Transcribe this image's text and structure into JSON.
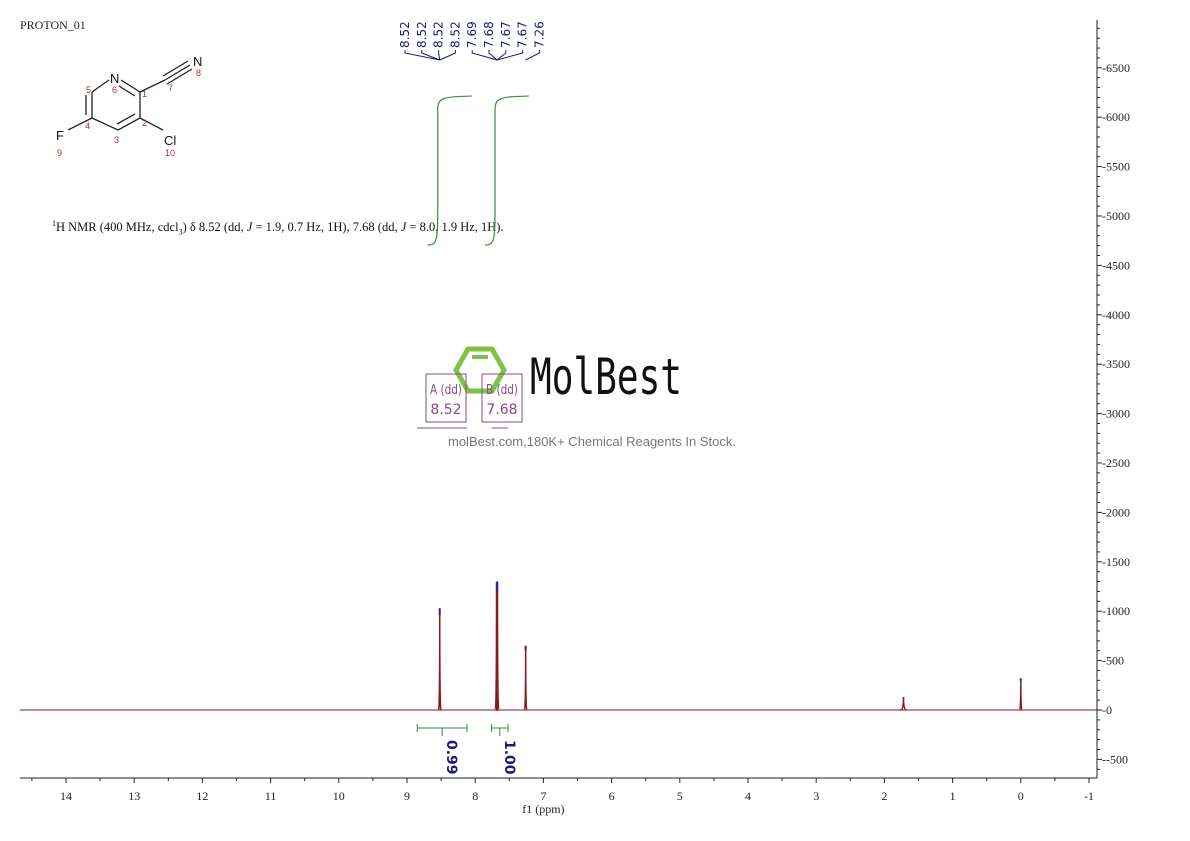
{
  "title": "PROTON_01",
  "description_text": "H NMR (400 MHz, cdcl3) δ 8.52 (dd, J = 1.9, 0.7 Hz, 1H), 7.68 (dd, J = 8.0, 1.9 Hz, 1H).",
  "description_parts": {
    "sup": "1",
    "a": "H NMR (400 MHz, cdcl",
    "sub": "3",
    "b": ") δ 8.52 (dd, ",
    "j1": "J",
    "c": " = 1.9, 0.7 Hz, 1H), 7.68 (dd, ",
    "j2": "J",
    "d": " = 8.0, 1.9 Hz, 1H)."
  },
  "molecule": {
    "atoms": [
      "N",
      "N",
      "F",
      "Cl"
    ],
    "numbers": [
      "1",
      "2",
      "3",
      "4",
      "5",
      "6",
      "7",
      "8",
      "9",
      "10"
    ]
  },
  "watermark": {
    "brand": "MolBest",
    "tagline": "molBest.com,180K+ Chemical Reagents In Stock.",
    "color": "#7dc242"
  },
  "chart_data": {
    "type": "line",
    "xlabel": "f1 (ppm)",
    "xlim": [
      14.7,
      -1
    ],
    "x_reversed": true,
    "ylim": [
      -700,
      6950
    ],
    "xticks": [
      14,
      13,
      12,
      11,
      10,
      9,
      8,
      7,
      6,
      5,
      4,
      3,
      2,
      1,
      0,
      -1
    ],
    "yticks": [
      -500,
      0,
      500,
      1000,
      1500,
      2000,
      2500,
      3000,
      3500,
      4000,
      4500,
      5000,
      5500,
      6000,
      6500
    ],
    "grid": false,
    "peaks": [
      {
        "ppm": 8.52,
        "height": 1030
      },
      {
        "ppm": 7.68,
        "height": 1300
      },
      {
        "ppm": 7.26,
        "height": 650
      },
      {
        "ppm": 1.72,
        "height": 130
      },
      {
        "ppm": 0.0,
        "height": 320
      }
    ],
    "peak_labels": [
      "8.52",
      "8.52",
      "8.52",
      "8.52",
      "7.69",
      "7.68",
      "7.67",
      "7.67",
      "7.26"
    ],
    "multiplets": [
      {
        "label": "A (dd)",
        "shift": "8.52",
        "range": [
          8.85,
          8.12
        ]
      },
      {
        "label": "B (dd)",
        "shift": "7.68",
        "range": [
          7.76,
          7.52
        ]
      }
    ],
    "integrals": [
      {
        "value": "0.99",
        "range": [
          8.85,
          8.12
        ]
      },
      {
        "value": "1.00",
        "range": [
          7.76,
          7.52
        ]
      }
    ],
    "colors": {
      "spectrum": "#8b1a1a",
      "peak_tip": "#2a2aa0",
      "integral": "#3a8a3a",
      "label": "#1a1a7a",
      "multiplet": "#8a4a8a"
    }
  }
}
